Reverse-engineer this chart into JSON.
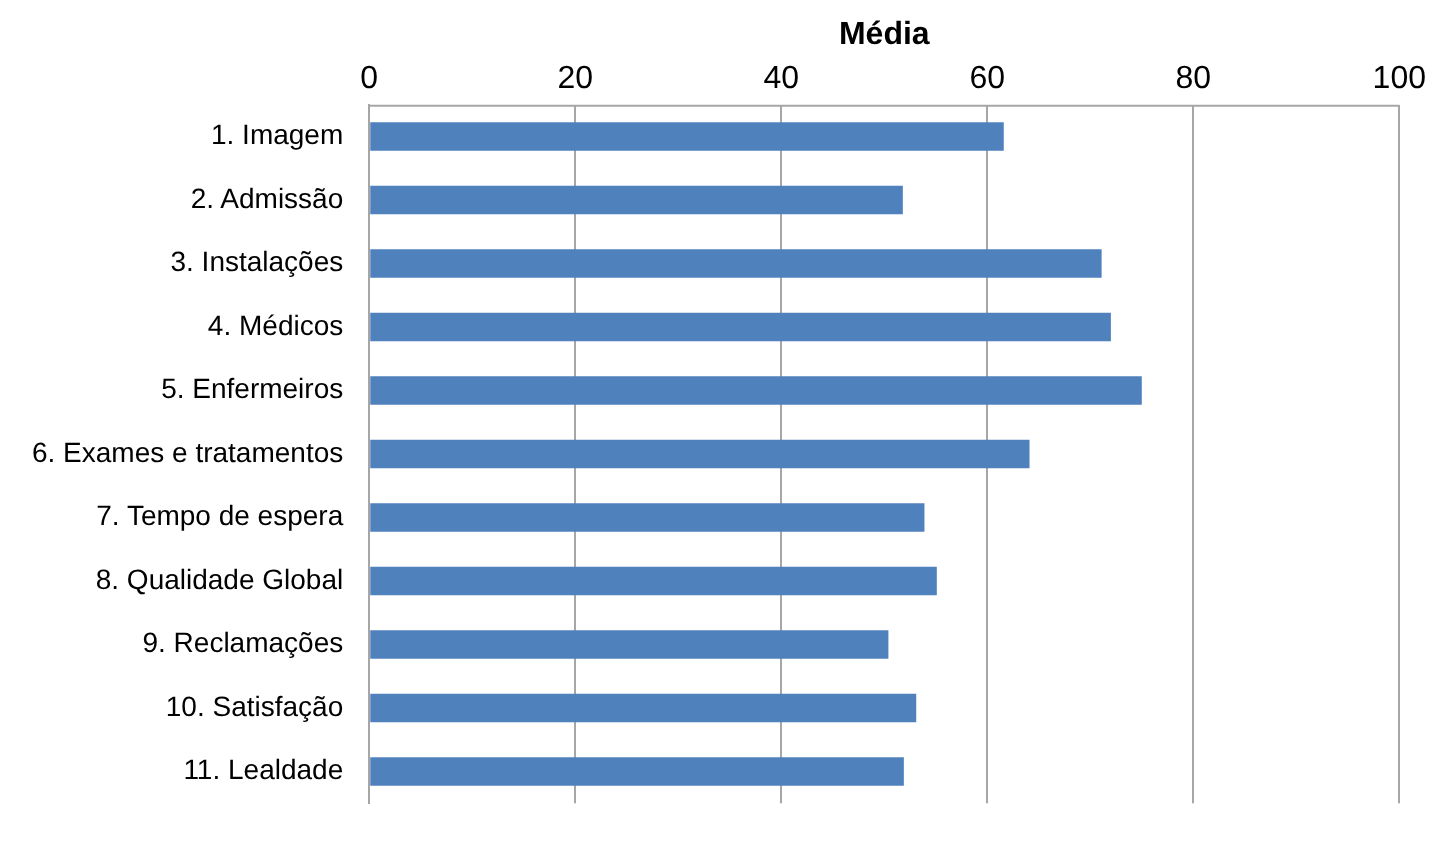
{
  "chart_data": {
    "type": "bar",
    "orientation": "horizontal",
    "xlabel": "Média",
    "categories": [
      "1. Imagem",
      "2. Admissão",
      "3. Instalações",
      "4. Médicos",
      "5. Enfermeiros",
      "6. Exames e tratamentos",
      "7. Tempo de espera",
      "8. Qualidade Global",
      "9. Reclamações",
      "10. Satisfação",
      "11. Lealdade"
    ],
    "values": [
      61.6,
      51.8,
      71.1,
      72,
      75,
      64.1,
      53.9,
      55.1,
      50.4,
      53.1,
      51.9
    ],
    "color": "#4f81bd",
    "xlim": [
      0,
      100
    ],
    "xticks": [
      0,
      20,
      40,
      60,
      80,
      100
    ],
    "grid": "x",
    "legend": false
  }
}
